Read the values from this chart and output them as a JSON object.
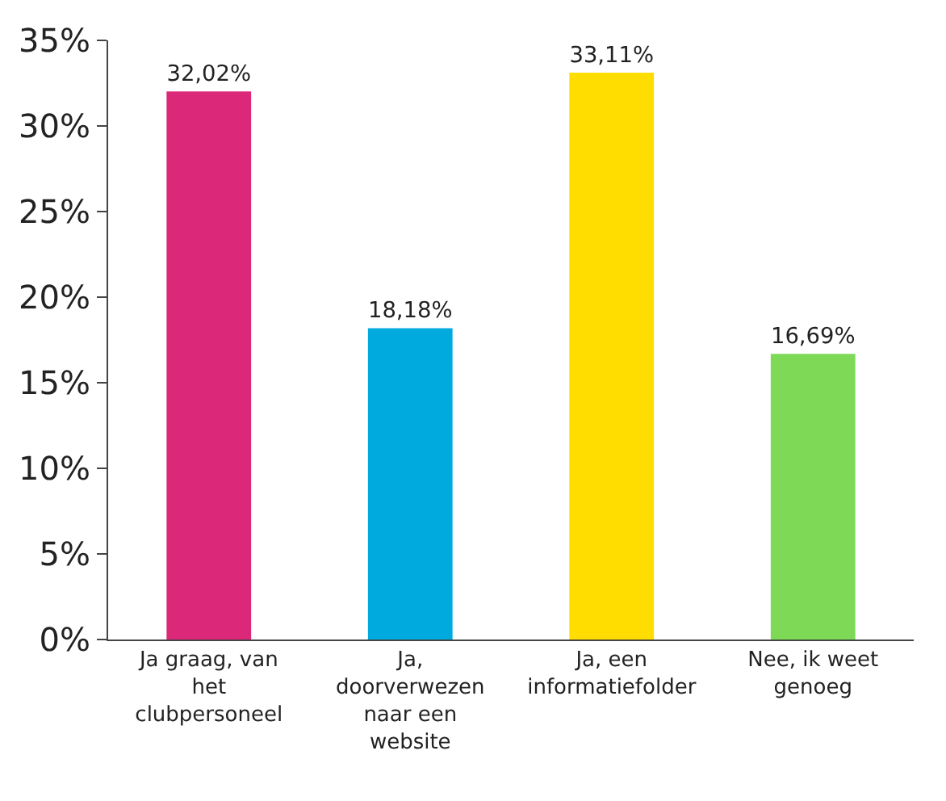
{
  "chart_data": {
    "type": "bar",
    "categories": [
      "Ja graag, van het clubpersoneel",
      "Ja, doorverwezen naar een website",
      "Ja, een informatiefolder",
      "Nee, ik weet genoeg"
    ],
    "values": [
      32.02,
      18.18,
      33.11,
      16.69
    ],
    "colors": [
      "#dc2878",
      "#00aadf",
      "#ffdd00",
      "#7ed957"
    ],
    "value_labels": [
      "32,02%",
      "18,18%",
      "33,11%",
      "16,69%"
    ],
    "ylim": [
      0,
      35
    ],
    "yticks": [
      {
        "value": 0,
        "label": "0%"
      },
      {
        "value": 5,
        "label": "5%"
      },
      {
        "value": 10,
        "label": "10%"
      },
      {
        "value": 15,
        "label": "15%"
      },
      {
        "value": 20,
        "label": "20%"
      },
      {
        "value": 25,
        "label": "25%"
      },
      {
        "value": 30,
        "label": "30%"
      },
      {
        "value": 35,
        "label": "35%"
      }
    ]
  }
}
